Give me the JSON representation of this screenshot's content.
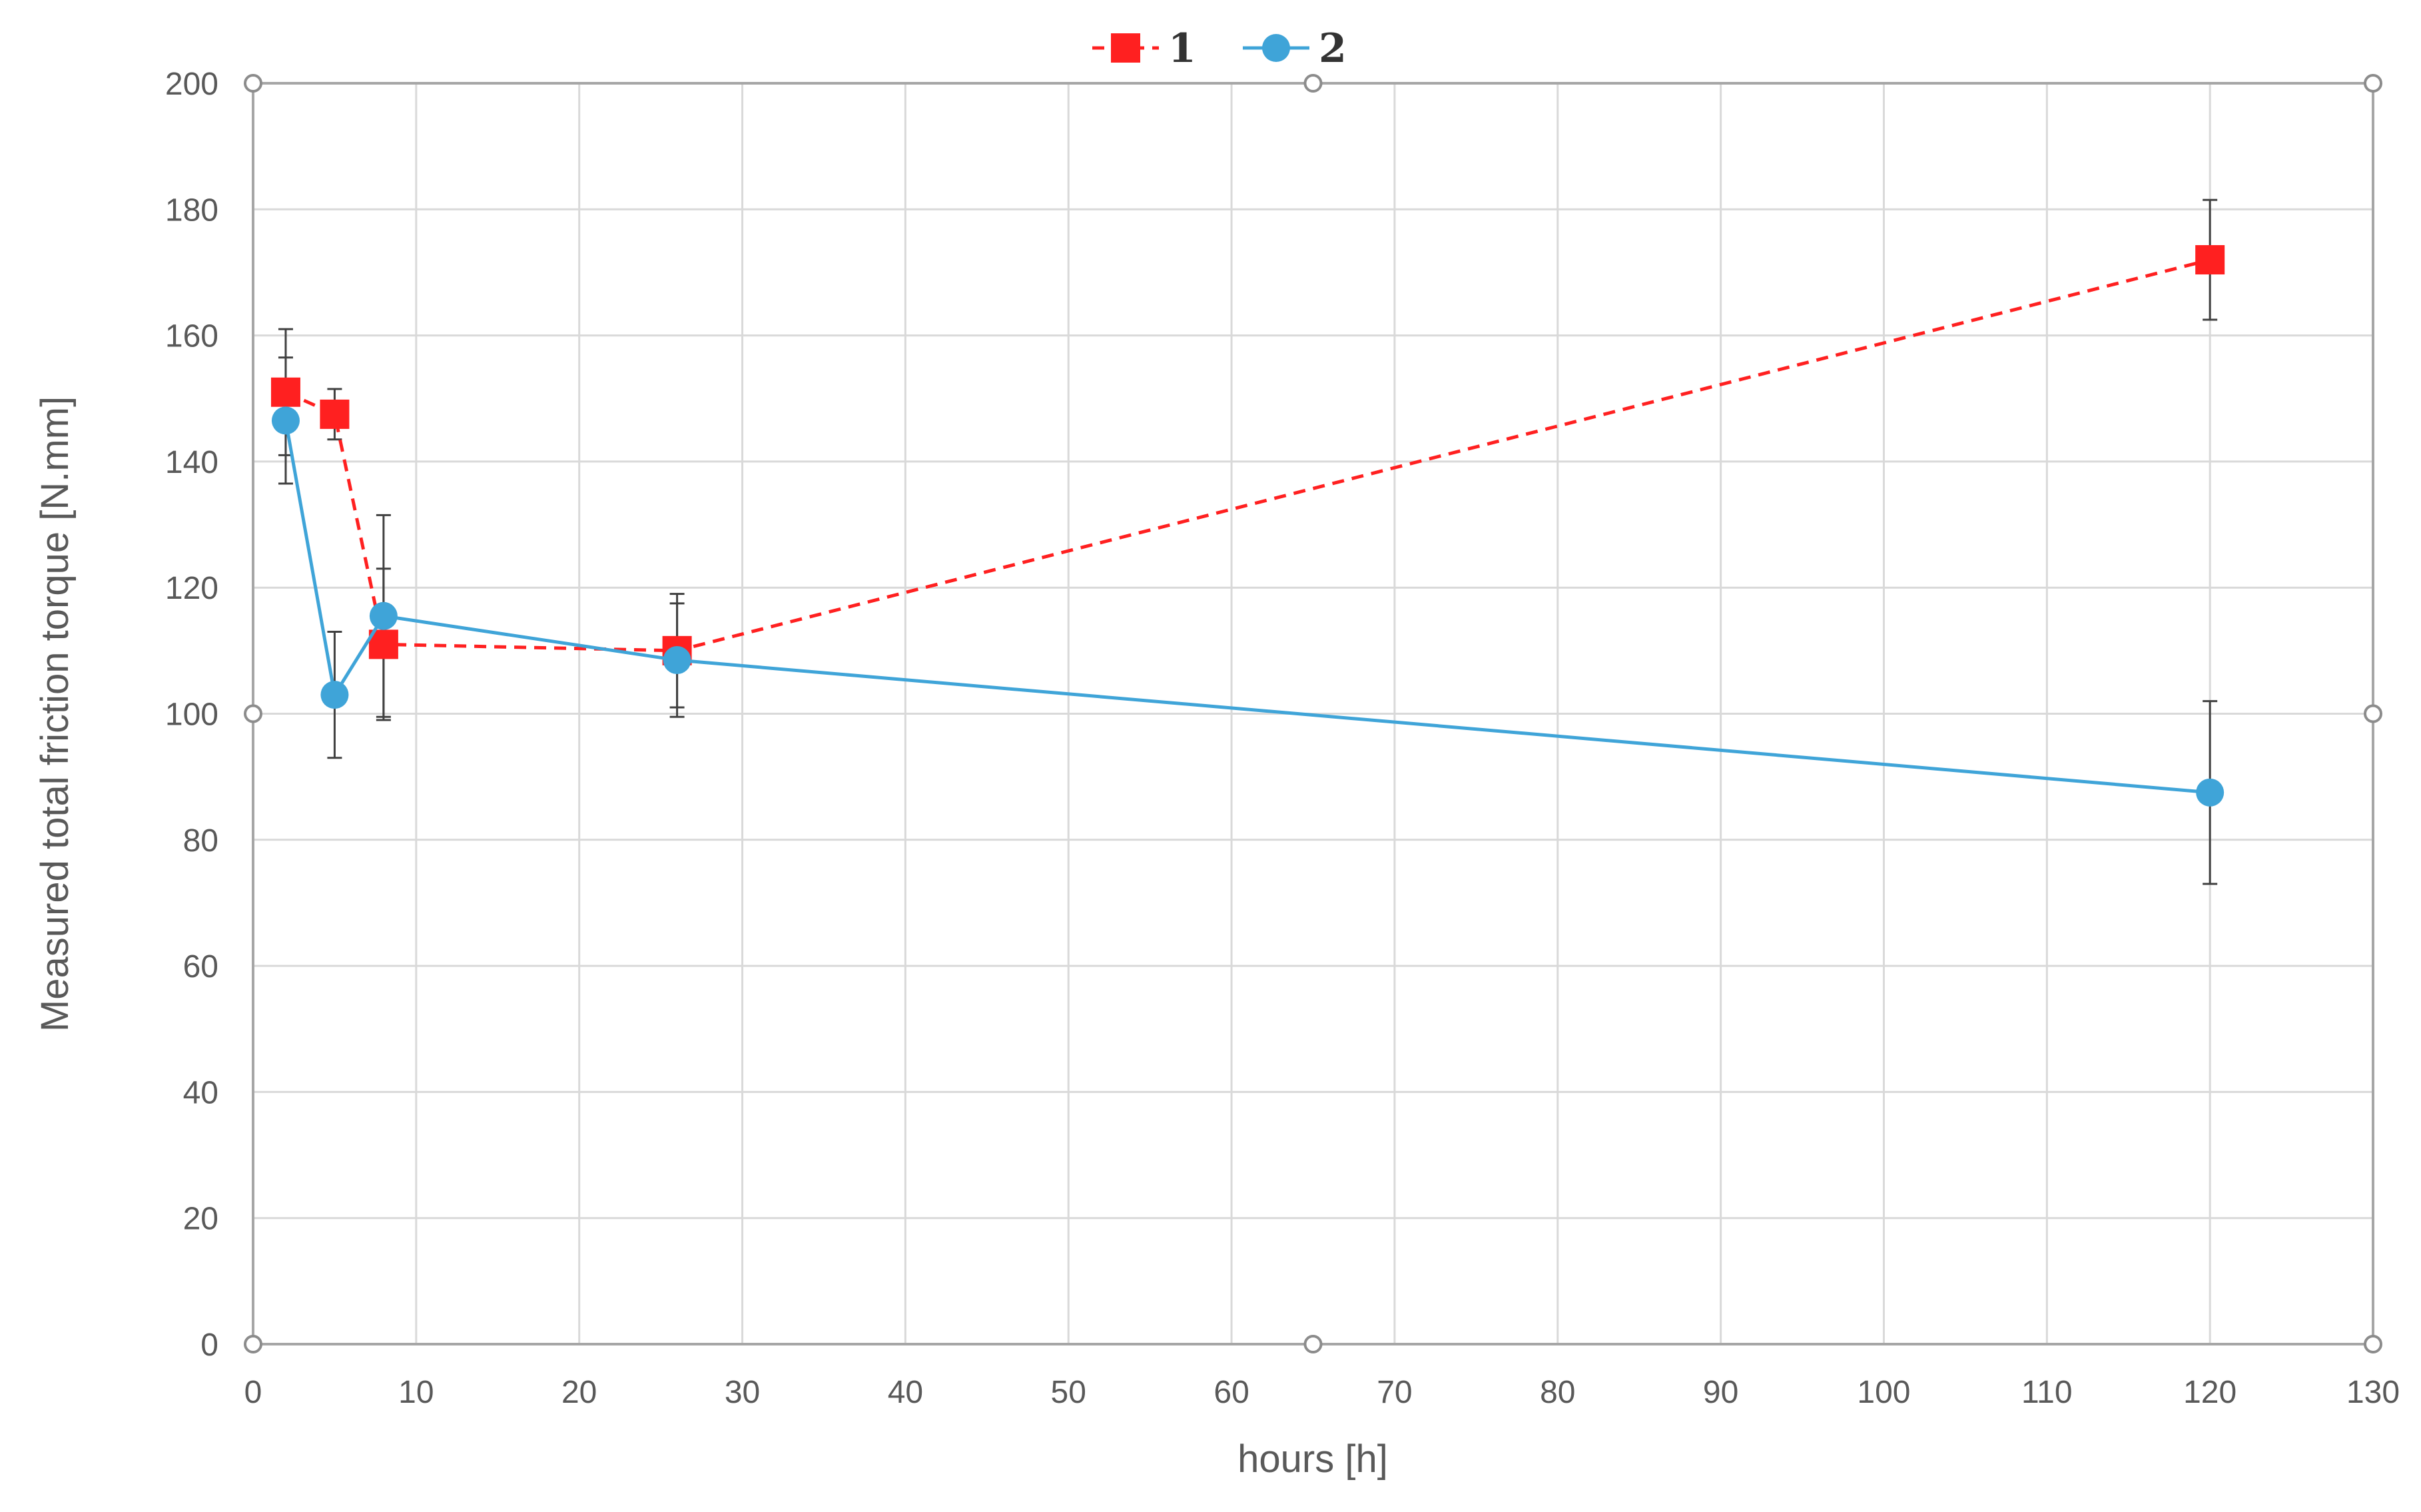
{
  "chart_data": {
    "type": "line",
    "title": "",
    "xlabel": "hours [h]",
    "ylabel": "Measured total friction torque [N.mm]",
    "xlim": [
      0,
      130
    ],
    "ylim": [
      0,
      200
    ],
    "x_ticks": [
      0,
      10,
      20,
      30,
      40,
      50,
      60,
      70,
      80,
      90,
      100,
      110,
      120,
      130
    ],
    "y_ticks": [
      0,
      20,
      40,
      60,
      80,
      100,
      120,
      140,
      160,
      180,
      200
    ],
    "grid": true,
    "legend_position": "top-center",
    "series": [
      {
        "name": "1",
        "color": "#ff2020",
        "line_style": "dashed",
        "marker": "square",
        "x": [
          2,
          5,
          8,
          26,
          120
        ],
        "y": [
          151,
          147.5,
          111,
          110,
          172
        ],
        "error": [
          10,
          4,
          12,
          9,
          9.5
        ]
      },
      {
        "name": "2",
        "color": "#3fa4d8",
        "line_style": "solid",
        "marker": "circle",
        "x": [
          2,
          5,
          8,
          26,
          120
        ],
        "y": [
          146.5,
          103,
          115.5,
          108.5,
          87.5
        ],
        "error": [
          10,
          10,
          16,
          9,
          14.5
        ]
      }
    ]
  }
}
